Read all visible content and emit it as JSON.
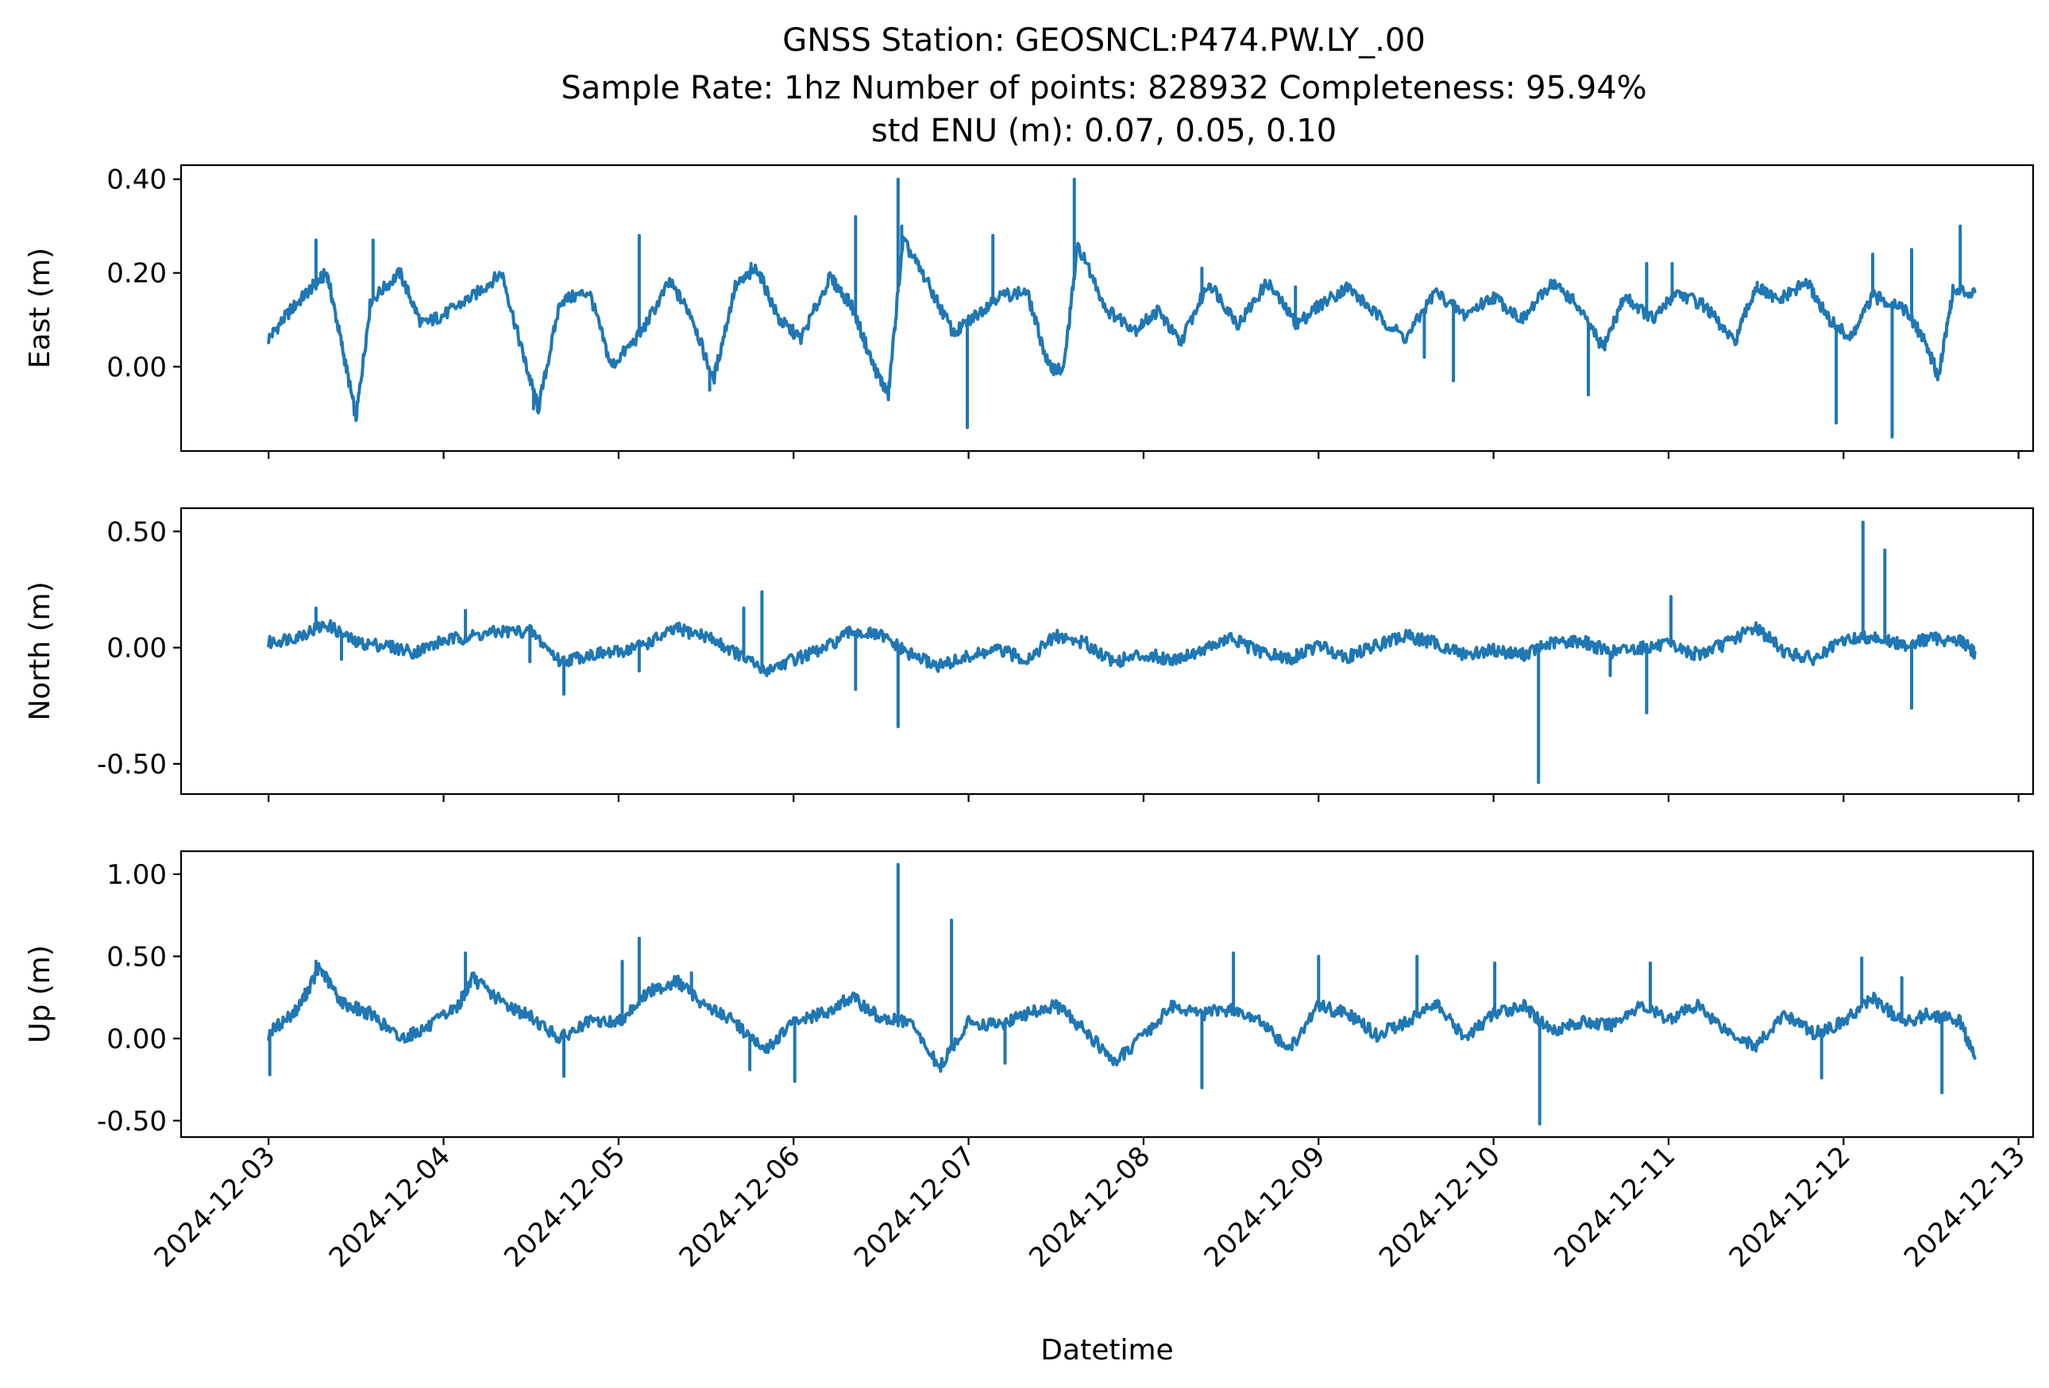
{
  "figure": {
    "title_lines": [
      "GNSS Station: GEOSNCL:P474.PW.LY_.00",
      "Sample Rate: 1hz   Number of points: 828932    Completeness:  95.94%",
      "std ENU (m):  0.07, 0.05, 0.10"
    ],
    "line_color": "#1f77b4"
  },
  "chart_data": [
    {
      "type": "line",
      "ylabel": "East (m)",
      "xlabel": "",
      "xlim": [
        "2024-12-02T12:00",
        "2024-12-13T02:00"
      ],
      "ylim": [
        -0.18,
        0.43
      ],
      "yticks": [
        0.0,
        0.2,
        0.4
      ],
      "ytick_labels": [
        "0.00",
        "0.20",
        "0.40"
      ],
      "xtick_labels": [],
      "baseline": [
        [
          "2024-12-03T00:00",
          0.06
        ],
        [
          "2024-12-03T03:00",
          0.12
        ],
        [
          "2024-12-03T06:00",
          0.17
        ],
        [
          "2024-12-03T08:00",
          0.2
        ],
        [
          "2024-12-03T10:00",
          0.05
        ],
        [
          "2024-12-03T12:00",
          -0.11
        ],
        [
          "2024-12-03T14:00",
          0.14
        ],
        [
          "2024-12-03T18:00",
          0.2
        ],
        [
          "2024-12-03T21:00",
          0.09
        ],
        [
          "2024-12-04T00:00",
          0.11
        ],
        [
          "2024-12-04T04:00",
          0.15
        ],
        [
          "2024-12-04T08:00",
          0.2
        ],
        [
          "2024-12-04T11:00",
          0.02
        ],
        [
          "2024-12-04T13:00",
          -0.09
        ],
        [
          "2024-12-04T16:00",
          0.14
        ],
        [
          "2024-12-04T20:00",
          0.16
        ],
        [
          "2024-12-04T23:00",
          0.0
        ],
        [
          "2024-12-05T03:00",
          0.07
        ],
        [
          "2024-12-05T07:00",
          0.18
        ],
        [
          "2024-12-05T10:00",
          0.11
        ],
        [
          "2024-12-05T13:00",
          -0.03
        ],
        [
          "2024-12-05T16:00",
          0.17
        ],
        [
          "2024-12-05T19:00",
          0.21
        ],
        [
          "2024-12-05T22:00",
          0.1
        ],
        [
          "2024-12-06T01:00",
          0.06
        ],
        [
          "2024-12-06T05:00",
          0.19
        ],
        [
          "2024-12-06T08:00",
          0.13
        ],
        [
          "2024-12-06T11:00",
          0.0
        ],
        [
          "2024-12-06T13:00",
          -0.06
        ],
        [
          "2024-12-06T15:00",
          0.27
        ],
        [
          "2024-12-06T18:00",
          0.19
        ],
        [
          "2024-12-06T22:00",
          0.07
        ],
        [
          "2024-12-07T01:00",
          0.11
        ],
        [
          "2024-12-07T04:00",
          0.15
        ],
        [
          "2024-12-07T08:00",
          0.16
        ],
        [
          "2024-12-07T11:00",
          0.0
        ],
        [
          "2024-12-07T13:00",
          -0.01
        ],
        [
          "2024-12-07T15:00",
          0.26
        ],
        [
          "2024-12-07T19:00",
          0.12
        ],
        [
          "2024-12-07T23:00",
          0.08
        ],
        [
          "2024-12-08T02:00",
          0.12
        ],
        [
          "2024-12-08T05:00",
          0.05
        ],
        [
          "2024-12-08T09:00",
          0.18
        ],
        [
          "2024-12-08T13:00",
          0.09
        ],
        [
          "2024-12-08T17:00",
          0.18
        ],
        [
          "2024-12-08T21:00",
          0.09
        ],
        [
          "2024-12-09T00:00",
          0.13
        ],
        [
          "2024-12-09T04:00",
          0.17
        ],
        [
          "2024-12-09T08:00",
          0.11
        ],
        [
          "2024-12-09T12:00",
          0.06
        ],
        [
          "2024-12-09T16:00",
          0.16
        ],
        [
          "2024-12-09T20:00",
          0.11
        ],
        [
          "2024-12-10T00:00",
          0.15
        ],
        [
          "2024-12-10T04:00",
          0.1
        ],
        [
          "2024-12-10T08:00",
          0.18
        ],
        [
          "2024-12-10T11:00",
          0.14
        ],
        [
          "2024-12-10T15:00",
          0.04
        ],
        [
          "2024-12-10T18:00",
          0.15
        ],
        [
          "2024-12-10T22:00",
          0.1
        ],
        [
          "2024-12-11T01:00",
          0.16
        ],
        [
          "2024-12-11T05:00",
          0.13
        ],
        [
          "2024-12-11T09:00",
          0.05
        ],
        [
          "2024-12-11T12:00",
          0.17
        ],
        [
          "2024-12-11T15:00",
          0.14
        ],
        [
          "2024-12-11T19:00",
          0.18
        ],
        [
          "2024-12-11T22:00",
          0.1
        ],
        [
          "2024-12-12T01:00",
          0.06
        ],
        [
          "2024-12-12T04:00",
          0.15
        ],
        [
          "2024-12-12T08:00",
          0.13
        ],
        [
          "2024-12-12T11:00",
          0.06
        ],
        [
          "2024-12-12T13:00",
          -0.02
        ],
        [
          "2024-12-12T15:00",
          0.16
        ],
        [
          "2024-12-12T18:00",
          0.16
        ]
      ],
      "spikes": [
        [
          "2024-12-03T06:30",
          0.27
        ],
        [
          "2024-12-03T14:20",
          0.27
        ],
        [
          "2024-12-04T11:10",
          0.02
        ],
        [
          "2024-12-04T12:20",
          -0.09
        ],
        [
          "2024-12-05T02:50",
          0.28
        ],
        [
          "2024-12-05T12:30",
          -0.05
        ],
        [
          "2024-12-05T18:10",
          0.22
        ],
        [
          "2024-12-06T08:30",
          0.32
        ],
        [
          "2024-12-06T14:20",
          0.4
        ],
        [
          "2024-12-06T14:50",
          0.3
        ],
        [
          "2024-12-06T23:50",
          -0.13
        ],
        [
          "2024-12-07T03:20",
          0.28
        ],
        [
          "2024-12-07T14:30",
          0.4
        ],
        [
          "2024-12-08T08:00",
          0.21
        ],
        [
          "2024-12-08T20:50",
          0.17
        ],
        [
          "2024-12-09T14:30",
          0.02
        ],
        [
          "2024-12-09T18:30",
          -0.03
        ],
        [
          "2024-12-10T13:00",
          -0.06
        ],
        [
          "2024-12-10T21:00",
          0.22
        ],
        [
          "2024-12-11T00:30",
          0.22
        ],
        [
          "2024-12-11T12:10",
          0.18
        ],
        [
          "2024-12-11T23:00",
          -0.12
        ],
        [
          "2024-12-12T04:00",
          0.24
        ],
        [
          "2024-12-12T06:40",
          -0.15
        ],
        [
          "2024-12-12T09:20",
          0.25
        ],
        [
          "2024-12-12T16:00",
          0.3
        ]
      ]
    },
    {
      "type": "line",
      "ylabel": "North (m)",
      "xlabel": "",
      "xlim": [
        "2024-12-02T12:00",
        "2024-12-13T02:00"
      ],
      "ylim": [
        -0.63,
        0.6
      ],
      "yticks": [
        -0.5,
        0.0,
        0.5
      ],
      "ytick_labels": [
        "-0.50",
        "0.00",
        "0.50"
      ],
      "xtick_labels": [],
      "baseline": [
        [
          "2024-12-03T00:00",
          0.02
        ],
        [
          "2024-12-03T04:00",
          0.05
        ],
        [
          "2024-12-03T08:00",
          0.1
        ],
        [
          "2024-12-03T12:00",
          0.02
        ],
        [
          "2024-12-03T16:00",
          0.01
        ],
        [
          "2024-12-03T20:00",
          -0.02
        ],
        [
          "2024-12-04T00:00",
          0.03
        ],
        [
          "2024-12-04T04:00",
          0.05
        ],
        [
          "2024-12-04T08:00",
          0.07
        ],
        [
          "2024-12-04T12:00",
          0.07
        ],
        [
          "2024-12-04T16:00",
          -0.06
        ],
        [
          "2024-12-04T20:00",
          -0.03
        ],
        [
          "2024-12-05T00:00",
          -0.02
        ],
        [
          "2024-12-05T04:00",
          0.02
        ],
        [
          "2024-12-05T08:00",
          0.08
        ],
        [
          "2024-12-05T12:00",
          0.05
        ],
        [
          "2024-12-05T16:00",
          -0.02
        ],
        [
          "2024-12-05T20:00",
          -0.1
        ],
        [
          "2024-12-06T00:00",
          -0.05
        ],
        [
          "2024-12-06T04:00",
          -0.01
        ],
        [
          "2024-12-06T08:00",
          0.07
        ],
        [
          "2024-12-06T12:00",
          0.05
        ],
        [
          "2024-12-06T16:00",
          -0.03
        ],
        [
          "2024-12-06T20:00",
          -0.08
        ],
        [
          "2024-12-07T00:00",
          -0.04
        ],
        [
          "2024-12-07T04:00",
          -0.01
        ],
        [
          "2024-12-07T08:00",
          -0.05
        ],
        [
          "2024-12-07T12:00",
          0.05
        ],
        [
          "2024-12-07T16:00",
          0.02
        ],
        [
          "2024-12-07T20:00",
          -0.06
        ],
        [
          "2024-12-08T00:00",
          -0.03
        ],
        [
          "2024-12-08T04:00",
          -0.05
        ],
        [
          "2024-12-08T08:00",
          -0.01
        ],
        [
          "2024-12-08T12:00",
          0.04
        ],
        [
          "2024-12-08T16:00",
          -0.02
        ],
        [
          "2024-12-08T20:00",
          -0.05
        ],
        [
          "2024-12-09T00:00",
          0.01
        ],
        [
          "2024-12-09T04:00",
          -0.04
        ],
        [
          "2024-12-09T08:00",
          0.01
        ],
        [
          "2024-12-09T12:00",
          0.05
        ],
        [
          "2024-12-09T16:00",
          0.02
        ],
        [
          "2024-12-09T20:00",
          -0.03
        ],
        [
          "2024-12-10T00:00",
          -0.01
        ],
        [
          "2024-12-10T04:00",
          -0.03
        ],
        [
          "2024-12-10T08:00",
          0.02
        ],
        [
          "2024-12-10T12:00",
          0.03
        ],
        [
          "2024-12-10T16:00",
          -0.02
        ],
        [
          "2024-12-10T20:00",
          0.0
        ],
        [
          "2024-12-11T00:00",
          0.01
        ],
        [
          "2024-12-11T04:00",
          -0.03
        ],
        [
          "2024-12-11T08:00",
          0.02
        ],
        [
          "2024-12-11T12:00",
          0.09
        ],
        [
          "2024-12-11T16:00",
          -0.02
        ],
        [
          "2024-12-11T20:00",
          -0.05
        ],
        [
          "2024-12-12T00:00",
          0.03
        ],
        [
          "2024-12-12T04:00",
          0.05
        ],
        [
          "2024-12-12T08:00",
          0.01
        ],
        [
          "2024-12-12T12:00",
          0.04
        ],
        [
          "2024-12-12T16:00",
          0.03
        ],
        [
          "2024-12-12T18:00",
          -0.02
        ]
      ],
      "spikes": [
        [
          "2024-12-03T06:30",
          0.17
        ],
        [
          "2024-12-03T10:00",
          -0.05
        ],
        [
          "2024-12-04T03:00",
          0.16
        ],
        [
          "2024-12-04T11:50",
          -0.06
        ],
        [
          "2024-12-04T16:30",
          -0.2
        ],
        [
          "2024-12-05T02:50",
          -0.1
        ],
        [
          "2024-12-05T17:10",
          0.17
        ],
        [
          "2024-12-05T19:40",
          0.24
        ],
        [
          "2024-12-06T08:30",
          -0.18
        ],
        [
          "2024-12-06T14:20",
          -0.34
        ],
        [
          "2024-12-08T21:00",
          -0.06
        ],
        [
          "2024-12-10T06:10",
          -0.58
        ],
        [
          "2024-12-10T16:00",
          -0.12
        ],
        [
          "2024-12-10T21:00",
          -0.28
        ],
        [
          "2024-12-11T00:20",
          0.22
        ],
        [
          "2024-12-12T02:40",
          0.54
        ],
        [
          "2024-12-12T05:40",
          0.42
        ],
        [
          "2024-12-12T09:20",
          -0.26
        ]
      ]
    },
    {
      "type": "line",
      "ylabel": "Up (m)",
      "xlabel": "Datetime",
      "xlim": [
        "2024-12-02T12:00",
        "2024-12-13T02:00"
      ],
      "ylim": [
        -0.6,
        1.14
      ],
      "yticks": [
        -0.5,
        0.0,
        0.5,
        1.0
      ],
      "ytick_labels": [
        "-0.50",
        "0.00",
        "0.50",
        "1.00"
      ],
      "xtick_values": [
        "2024-12-03",
        "2024-12-04",
        "2024-12-05",
        "2024-12-06",
        "2024-12-07",
        "2024-12-08",
        "2024-12-09",
        "2024-12-10",
        "2024-12-11",
        "2024-12-12",
        "2024-12-13"
      ],
      "xtick_labels": [
        "2024-12-03",
        "2024-12-04",
        "2024-12-05",
        "2024-12-06",
        "2024-12-07",
        "2024-12-08",
        "2024-12-09",
        "2024-12-10",
        "2024-12-11",
        "2024-12-12",
        "2024-12-13"
      ],
      "baseline": [
        [
          "2024-12-03T00:00",
          0.03
        ],
        [
          "2024-12-03T04:00",
          0.18
        ],
        [
          "2024-12-03T07:00",
          0.43
        ],
        [
          "2024-12-03T10:00",
          0.22
        ],
        [
          "2024-12-03T14:00",
          0.15
        ],
        [
          "2024-12-03T18:00",
          0.0
        ],
        [
          "2024-12-03T22:00",
          0.07
        ],
        [
          "2024-12-04T02:00",
          0.2
        ],
        [
          "2024-12-04T04:00",
          0.37
        ],
        [
          "2024-12-04T08:00",
          0.22
        ],
        [
          "2024-12-04T12:00",
          0.13
        ],
        [
          "2024-12-04T16:00",
          0.0
        ],
        [
          "2024-12-04T20:00",
          0.1
        ],
        [
          "2024-12-05T00:00",
          0.1
        ],
        [
          "2024-12-05T04:00",
          0.28
        ],
        [
          "2024-12-05T08:00",
          0.35
        ],
        [
          "2024-12-05T12:00",
          0.2
        ],
        [
          "2024-12-05T16:00",
          0.1
        ],
        [
          "2024-12-05T20:00",
          -0.08
        ],
        [
          "2024-12-06T00:00",
          0.1
        ],
        [
          "2024-12-06T04:00",
          0.15
        ],
        [
          "2024-12-06T08:00",
          0.25
        ],
        [
          "2024-12-06T12:00",
          0.12
        ],
        [
          "2024-12-06T16:00",
          0.1
        ],
        [
          "2024-12-06T20:00",
          -0.18
        ],
        [
          "2024-12-07T00:00",
          0.1
        ],
        [
          "2024-12-07T04:00",
          0.08
        ],
        [
          "2024-12-07T08:00",
          0.15
        ],
        [
          "2024-12-07T12:00",
          0.2
        ],
        [
          "2024-12-07T16:00",
          0.05
        ],
        [
          "2024-12-07T20:00",
          -0.15
        ],
        [
          "2024-12-08T00:00",
          0.02
        ],
        [
          "2024-12-08T04:00",
          0.2
        ],
        [
          "2024-12-08T08:00",
          0.15
        ],
        [
          "2024-12-08T12:00",
          0.18
        ],
        [
          "2024-12-08T16:00",
          0.1
        ],
        [
          "2024-12-08T20:00",
          -0.07
        ],
        [
          "2024-12-09T00:00",
          0.2
        ],
        [
          "2024-12-09T04:00",
          0.15
        ],
        [
          "2024-12-09T08:00",
          0.02
        ],
        [
          "2024-12-09T12:00",
          0.1
        ],
        [
          "2024-12-09T16:00",
          0.22
        ],
        [
          "2024-12-09T20:00",
          0.0
        ],
        [
          "2024-12-10T00:00",
          0.15
        ],
        [
          "2024-12-10T04:00",
          0.2
        ],
        [
          "2024-12-10T08:00",
          0.05
        ],
        [
          "2024-12-10T12:00",
          0.1
        ],
        [
          "2024-12-10T16:00",
          0.08
        ],
        [
          "2024-12-10T20:00",
          0.2
        ],
        [
          "2024-12-11T00:00",
          0.12
        ],
        [
          "2024-12-11T04:00",
          0.2
        ],
        [
          "2024-12-11T08:00",
          0.05
        ],
        [
          "2024-12-11T12:00",
          -0.05
        ],
        [
          "2024-12-11T16:00",
          0.15
        ],
        [
          "2024-12-11T20:00",
          0.03
        ],
        [
          "2024-12-12T00:00",
          0.1
        ],
        [
          "2024-12-12T04:00",
          0.25
        ],
        [
          "2024-12-12T08:00",
          0.1
        ],
        [
          "2024-12-12T12:00",
          0.15
        ],
        [
          "2024-12-12T16:00",
          0.1
        ],
        [
          "2024-12-12T18:00",
          -0.12
        ]
      ],
      "spikes": [
        [
          "2024-12-03T00:10",
          -0.22
        ],
        [
          "2024-12-03T06:30",
          0.47
        ],
        [
          "2024-12-04T03:00",
          0.52
        ],
        [
          "2024-12-04T16:30",
          -0.23
        ],
        [
          "2024-12-05T00:30",
          0.47
        ],
        [
          "2024-12-05T02:50",
          0.61
        ],
        [
          "2024-12-05T10:00",
          0.4
        ],
        [
          "2024-12-05T18:00",
          -0.19
        ],
        [
          "2024-12-06T00:10",
          -0.26
        ],
        [
          "2024-12-06T14:20",
          1.06
        ],
        [
          "2024-12-06T21:40",
          0.72
        ],
        [
          "2024-12-07T05:00",
          -0.15
        ],
        [
          "2024-12-08T08:00",
          -0.3
        ],
        [
          "2024-12-08T12:20",
          0.52
        ],
        [
          "2024-12-09T00:00",
          0.5
        ],
        [
          "2024-12-09T13:30",
          0.5
        ],
        [
          "2024-12-10T00:10",
          0.46
        ],
        [
          "2024-12-10T06:20",
          -0.52
        ],
        [
          "2024-12-10T21:30",
          0.46
        ],
        [
          "2024-12-11T21:00",
          -0.24
        ],
        [
          "2024-12-12T02:30",
          0.49
        ],
        [
          "2024-12-12T08:00",
          0.37
        ],
        [
          "2024-12-12T13:30",
          -0.33
        ]
      ]
    }
  ]
}
